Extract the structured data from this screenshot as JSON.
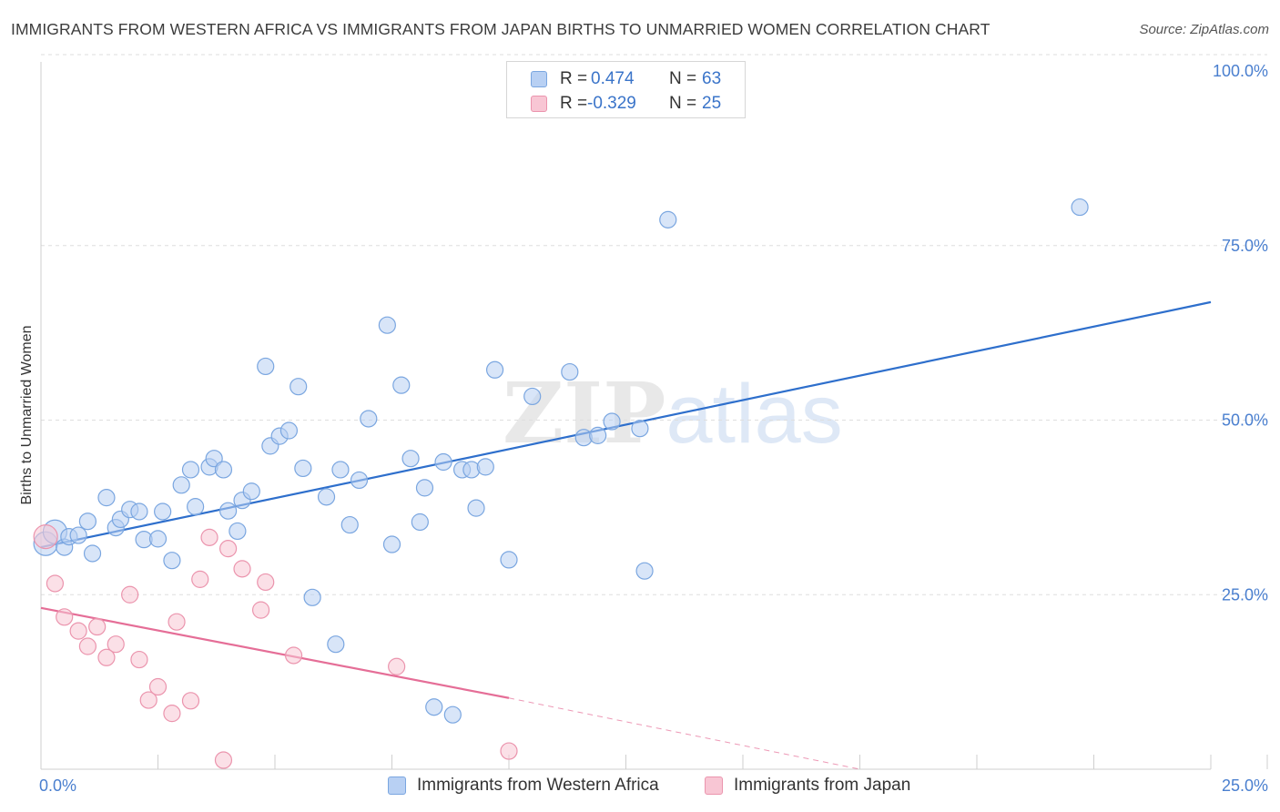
{
  "title": "IMMIGRANTS FROM WESTERN AFRICA VS IMMIGRANTS FROM JAPAN BIRTHS TO UNMARRIED WOMEN CORRELATION CHART",
  "source": "Source: ZipAtlas.com",
  "watermark": {
    "zip": "ZIP",
    "atlas": "atlas"
  },
  "legend": {
    "r_label": "R =",
    "n_label": "N =",
    "rows": [
      {
        "r": "0.474",
        "n": "63"
      },
      {
        "r": "-0.329",
        "n": "25"
      }
    ]
  },
  "colors": {
    "blue_fill": "#b8d0f3",
    "blue_stroke": "#7aa6e0",
    "blue_line": "#2e6fcc",
    "pink_fill": "#f8c6d4",
    "pink_stroke": "#eb94ad",
    "pink_line": "#e56e97"
  },
  "chart_data": {
    "type": "scatter",
    "title": "IMMIGRANTS FROM WESTERN AFRICA VS IMMIGRANTS FROM JAPAN BIRTHS TO UNMARRIED WOMEN CORRELATION CHART",
    "xlabel": "",
    "ylabel": "Births to Unmarried Women",
    "xlim": [
      0,
      25
    ],
    "ylim": [
      0,
      100
    ],
    "x_ticks": [
      "0.0%",
      "25.0%"
    ],
    "y_ticks": [
      "25.0%",
      "50.0%",
      "75.0%",
      "100.0%"
    ],
    "y_tick_values": [
      25,
      50,
      75,
      100
    ],
    "grid": true,
    "legend_position": "top-center",
    "series": [
      {
        "name": "Immigrants from Western Africa",
        "color": "#b8d0f3",
        "trend": {
          "x": [
            0,
            25
          ],
          "y": [
            31.8,
            66.9
          ]
        },
        "points": [
          {
            "x": 0.1,
            "y": 32.3,
            "big": true
          },
          {
            "x": 0.3,
            "y": 34.0,
            "big": true
          },
          {
            "x": 0.5,
            "y": 31.8
          },
          {
            "x": 0.6,
            "y": 33.3
          },
          {
            "x": 0.8,
            "y": 33.5
          },
          {
            "x": 1.0,
            "y": 35.5
          },
          {
            "x": 1.1,
            "y": 30.9
          },
          {
            "x": 1.4,
            "y": 38.9
          },
          {
            "x": 1.6,
            "y": 34.6
          },
          {
            "x": 1.7,
            "y": 35.8
          },
          {
            "x": 1.9,
            "y": 37.2
          },
          {
            "x": 2.1,
            "y": 36.9
          },
          {
            "x": 2.2,
            "y": 32.9
          },
          {
            "x": 2.5,
            "y": 33.0
          },
          {
            "x": 2.6,
            "y": 36.9
          },
          {
            "x": 2.8,
            "y": 29.9
          },
          {
            "x": 3.0,
            "y": 40.7
          },
          {
            "x": 3.2,
            "y": 42.9
          },
          {
            "x": 3.3,
            "y": 37.6
          },
          {
            "x": 3.6,
            "y": 43.3
          },
          {
            "x": 3.7,
            "y": 44.5
          },
          {
            "x": 3.9,
            "y": 42.9
          },
          {
            "x": 4.0,
            "y": 37.0
          },
          {
            "x": 4.2,
            "y": 34.1
          },
          {
            "x": 4.3,
            "y": 38.5
          },
          {
            "x": 4.5,
            "y": 39.8
          },
          {
            "x": 4.8,
            "y": 57.7
          },
          {
            "x": 4.9,
            "y": 46.3
          },
          {
            "x": 5.1,
            "y": 47.7
          },
          {
            "x": 5.3,
            "y": 48.5
          },
          {
            "x": 5.5,
            "y": 54.8
          },
          {
            "x": 5.6,
            "y": 43.1
          },
          {
            "x": 5.8,
            "y": 24.6
          },
          {
            "x": 6.1,
            "y": 39.0
          },
          {
            "x": 6.3,
            "y": 17.9
          },
          {
            "x": 6.4,
            "y": 42.9
          },
          {
            "x": 6.6,
            "y": 35.0
          },
          {
            "x": 6.8,
            "y": 41.4
          },
          {
            "x": 7.0,
            "y": 50.2
          },
          {
            "x": 7.4,
            "y": 63.6
          },
          {
            "x": 7.5,
            "y": 32.2
          },
          {
            "x": 7.7,
            "y": 55.0
          },
          {
            "x": 7.9,
            "y": 44.5
          },
          {
            "x": 8.1,
            "y": 35.4
          },
          {
            "x": 8.2,
            "y": 40.3
          },
          {
            "x": 8.4,
            "y": 8.9
          },
          {
            "x": 8.6,
            "y": 44.0
          },
          {
            "x": 8.8,
            "y": 7.8
          },
          {
            "x": 9.0,
            "y": 42.9
          },
          {
            "x": 9.2,
            "y": 42.9
          },
          {
            "x": 9.3,
            "y": 37.4
          },
          {
            "x": 9.5,
            "y": 43.3
          },
          {
            "x": 9.7,
            "y": 57.2
          },
          {
            "x": 10.0,
            "y": 30.0
          },
          {
            "x": 10.5,
            "y": 53.4
          },
          {
            "x": 11.3,
            "y": 56.9
          },
          {
            "x": 11.6,
            "y": 47.5
          },
          {
            "x": 11.9,
            "y": 47.8
          },
          {
            "x": 12.2,
            "y": 49.8
          },
          {
            "x": 12.8,
            "y": 48.8
          },
          {
            "x": 12.9,
            "y": 28.4
          },
          {
            "x": 13.4,
            "y": 78.7
          },
          {
            "x": 22.2,
            "y": 80.5
          }
        ]
      },
      {
        "name": "Immigrants from Japan",
        "color": "#f8c6d4",
        "trend": {
          "x": [
            0,
            10.0
          ],
          "y": [
            23.1,
            10.2
          ]
        },
        "trend_dashed": {
          "x": [
            10.0,
            17.5
          ],
          "y": [
            10.2,
            0.0
          ]
        },
        "points": [
          {
            "x": 0.1,
            "y": 33.3,
            "big": true
          },
          {
            "x": 0.3,
            "y": 26.6
          },
          {
            "x": 0.5,
            "y": 21.8
          },
          {
            "x": 0.8,
            "y": 19.8
          },
          {
            "x": 1.0,
            "y": 17.6
          },
          {
            "x": 1.2,
            "y": 20.4
          },
          {
            "x": 1.4,
            "y": 16.0
          },
          {
            "x": 1.6,
            "y": 17.9
          },
          {
            "x": 1.9,
            "y": 25.0
          },
          {
            "x": 2.1,
            "y": 15.7
          },
          {
            "x": 2.3,
            "y": 9.9
          },
          {
            "x": 2.5,
            "y": 11.8
          },
          {
            "x": 2.8,
            "y": 8.0
          },
          {
            "x": 2.9,
            "y": 21.1
          },
          {
            "x": 3.2,
            "y": 9.8
          },
          {
            "x": 3.4,
            "y": 27.2
          },
          {
            "x": 3.6,
            "y": 33.2
          },
          {
            "x": 3.9,
            "y": 1.3
          },
          {
            "x": 4.0,
            "y": 31.6
          },
          {
            "x": 4.3,
            "y": 28.7
          },
          {
            "x": 4.7,
            "y": 22.8
          },
          {
            "x": 4.8,
            "y": 26.8
          },
          {
            "x": 5.4,
            "y": 16.3
          },
          {
            "x": 7.6,
            "y": 14.7
          },
          {
            "x": 10.0,
            "y": 2.6
          }
        ]
      }
    ]
  }
}
